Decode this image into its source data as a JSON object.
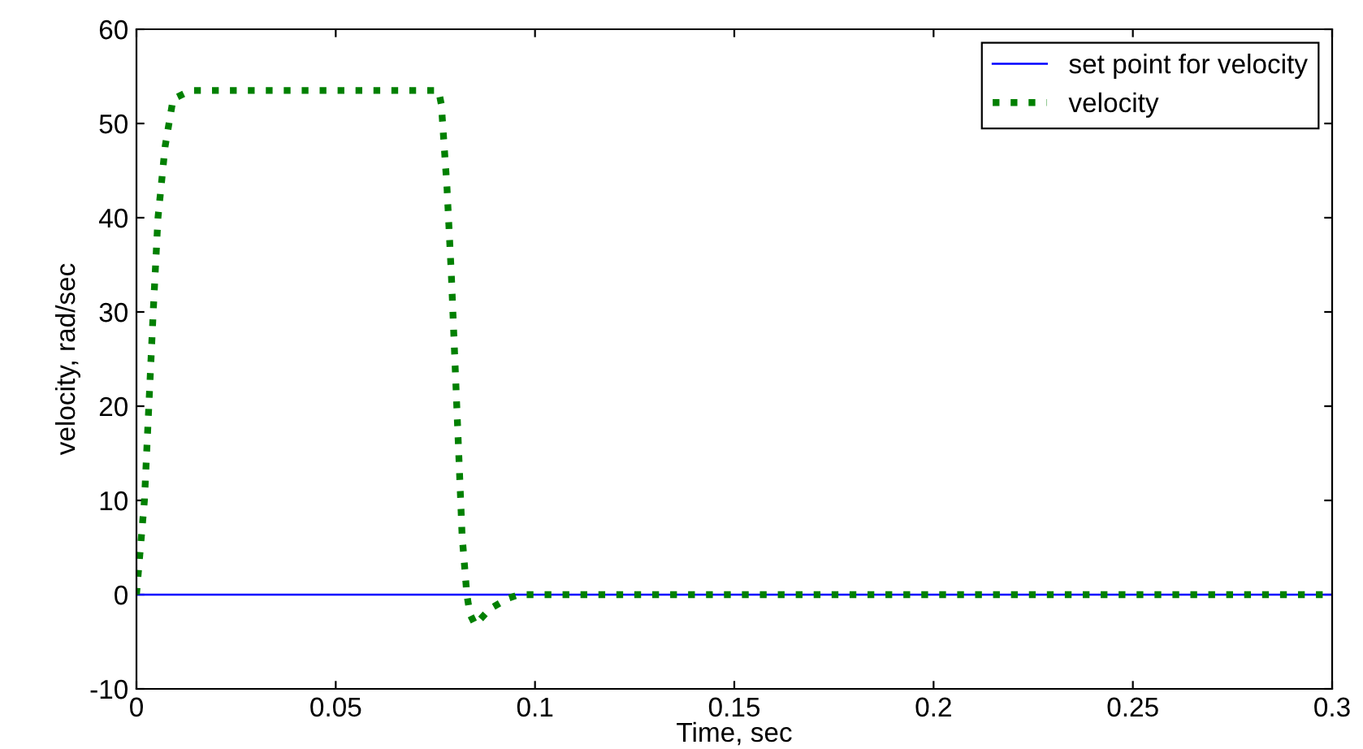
{
  "chart_data": {
    "type": "line",
    "xlabel": "Time, sec",
    "ylabel": "velocity, rad/sec",
    "xlim": [
      0,
      0.3
    ],
    "xticks": [
      0,
      0.05,
      0.1,
      0.15,
      0.2,
      0.25,
      0.3
    ],
    "ylim": [
      -10,
      60
    ],
    "yticks": [
      -10,
      0,
      10,
      20,
      30,
      40,
      50,
      60
    ],
    "grid": false,
    "legend": "top right",
    "series": [
      {
        "name": "set point for velocity",
        "color": "#0000ff",
        "line_style": "solid",
        "x": [
          0,
          0.3
        ],
        "values": [
          0,
          0
        ]
      },
      {
        "name": "velocity",
        "color": "#008000",
        "line_style": "dotted",
        "x": [
          0,
          0.002,
          0.0031,
          0.0042,
          0.0054,
          0.0072,
          0.0092,
          0.0136,
          0.0758,
          0.0765,
          0.0779,
          0.079,
          0.0799,
          0.0808,
          0.0817,
          0.0829,
          0.0837,
          0.085,
          0.0887,
          0.0932,
          0.096,
          0.3
        ],
        "values": [
          0,
          10,
          20,
          30,
          40,
          47.6,
          52.6,
          53.5,
          53.5,
          52,
          43.3,
          34,
          24.8,
          15.6,
          6.3,
          0,
          -2.1,
          -3.2,
          -1.5,
          -0.4,
          0,
          0
        ]
      }
    ]
  }
}
